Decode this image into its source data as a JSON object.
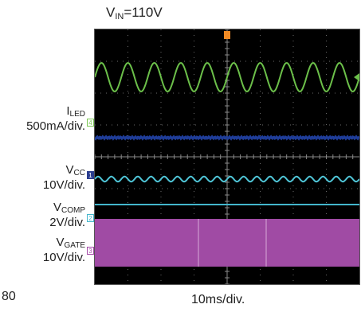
{
  "chart_data": {
    "type": "line",
    "title_prefix": "V",
    "title_sub": "IN",
    "title_suffix": "=110V",
    "time_scale": "10ms/div.",
    "figure_number": "80",
    "series": [
      {
        "name": "I",
        "sub": "LED",
        "scale": "500mA/div.",
        "marker": "4",
        "color": "#6cc04a",
        "kind": "sine",
        "divs": 1.5,
        "amplitude_div": 0.45,
        "cycles": 10
      },
      {
        "name": "",
        "sub": "",
        "scale": "",
        "marker": "",
        "color": "#1f3d99",
        "kind": "flat",
        "divs": 3.4,
        "amplitude_div": 0.03
      },
      {
        "name": "V",
        "sub": "CC",
        "scale": "10V/div.",
        "marker": "1",
        "color": "#4fc4d6",
        "kind": "sine",
        "divs": 4.7,
        "amplitude_div": 0.08,
        "cycles": 20
      },
      {
        "name": "V",
        "sub": "COMP",
        "scale": "2V/div.",
        "marker": "2",
        "color": "#43b6cc",
        "kind": "flat",
        "divs": 5.5,
        "amplitude_div": 0
      },
      {
        "name": "V",
        "sub": "GATE",
        "scale": "10V/div.",
        "marker": "3",
        "color": "#a04ba4",
        "kind": "band",
        "divs": 6.7,
        "amplitude_div": 0.75
      }
    ],
    "grid": {
      "x_divs": 8,
      "y_divs": 8,
      "on": true
    },
    "colors": {
      "screen": "#000000",
      "grid": "#555555"
    }
  }
}
